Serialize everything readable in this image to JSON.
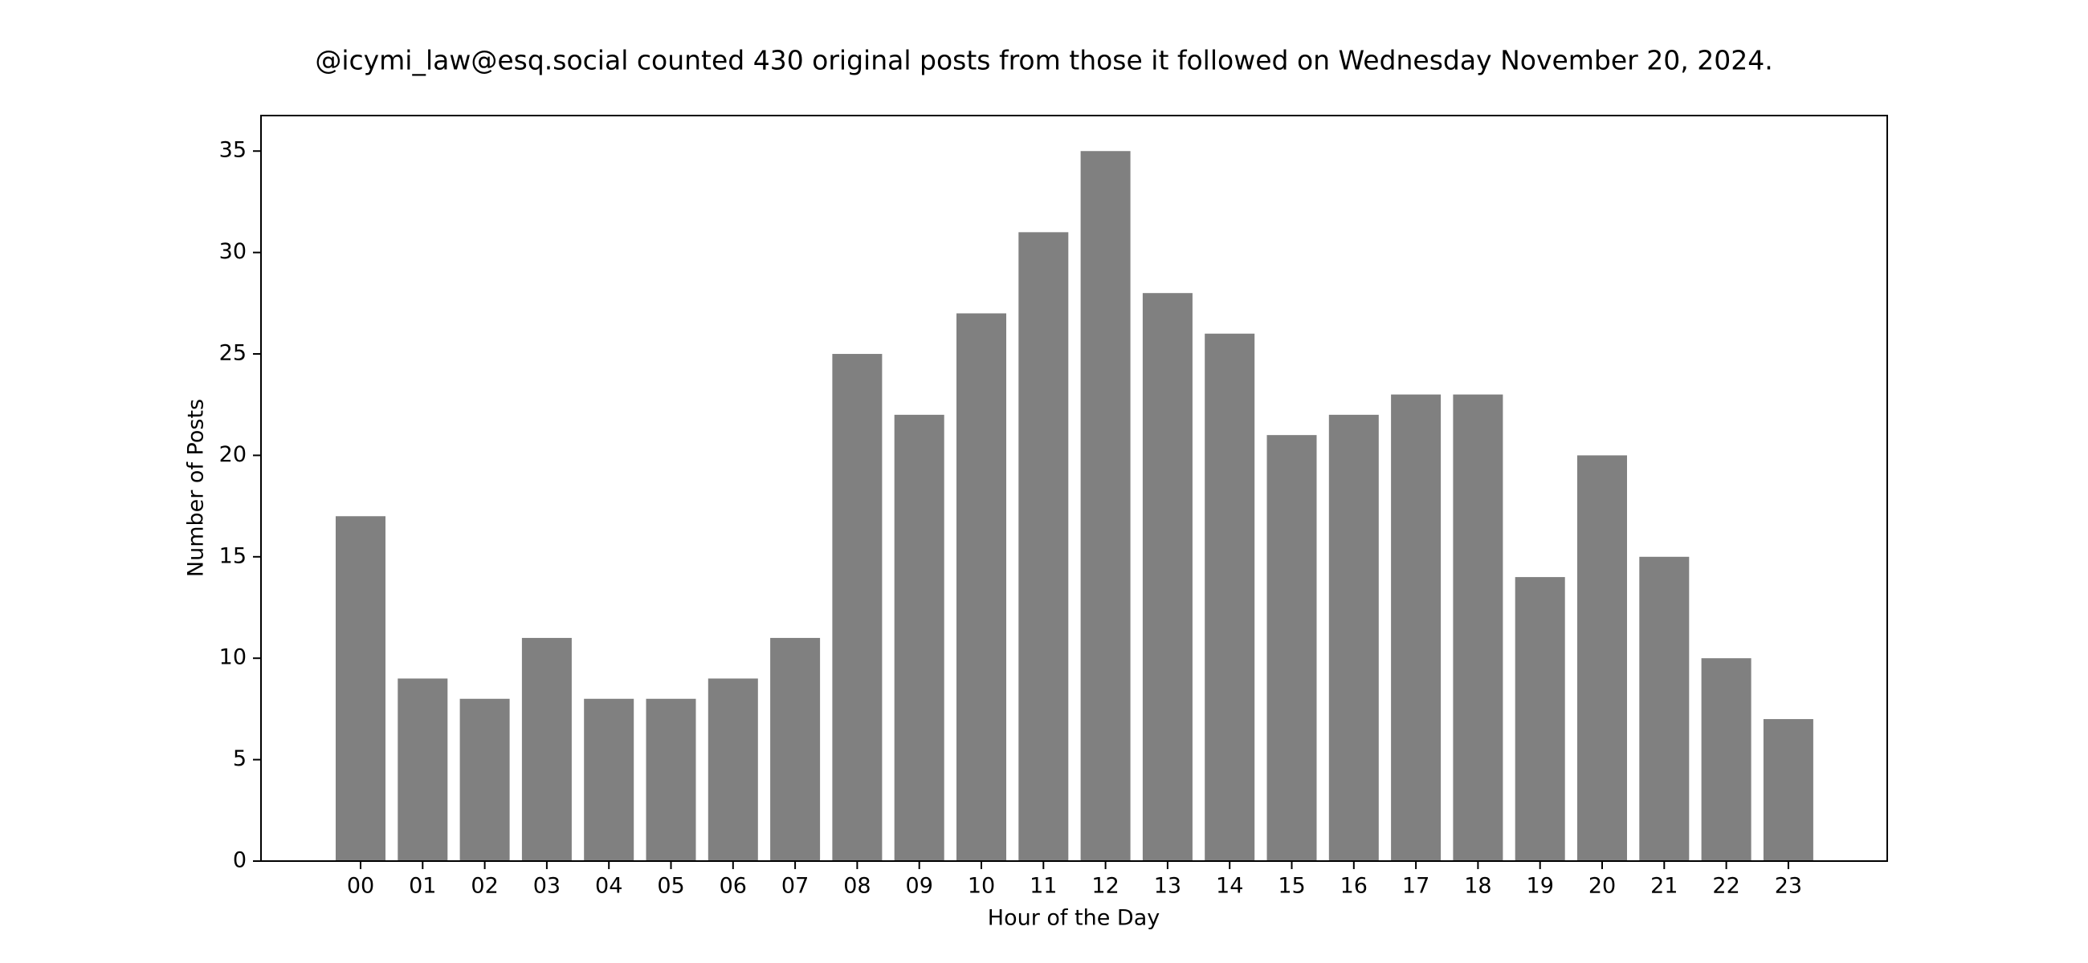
{
  "chart_data": {
    "type": "bar",
    "title": "@icymi_law@esq.social counted 430 original posts from those it followed on Wednesday November 20, 2024.",
    "xlabel": "Hour of the Day",
    "ylabel": "Number of Posts",
    "categories": [
      "00",
      "01",
      "02",
      "03",
      "04",
      "05",
      "06",
      "07",
      "08",
      "09",
      "10",
      "11",
      "12",
      "13",
      "14",
      "15",
      "16",
      "17",
      "18",
      "19",
      "20",
      "21",
      "22",
      "23"
    ],
    "values": [
      17,
      9,
      8,
      11,
      8,
      8,
      9,
      11,
      25,
      22,
      27,
      31,
      35,
      28,
      26,
      21,
      22,
      23,
      23,
      14,
      20,
      15,
      10,
      7
    ],
    "ylim": [
      0,
      36.75
    ],
    "yticks": [
      0,
      5,
      10,
      15,
      20,
      25,
      30,
      35
    ],
    "grid": false,
    "bar_color": "#808080"
  }
}
